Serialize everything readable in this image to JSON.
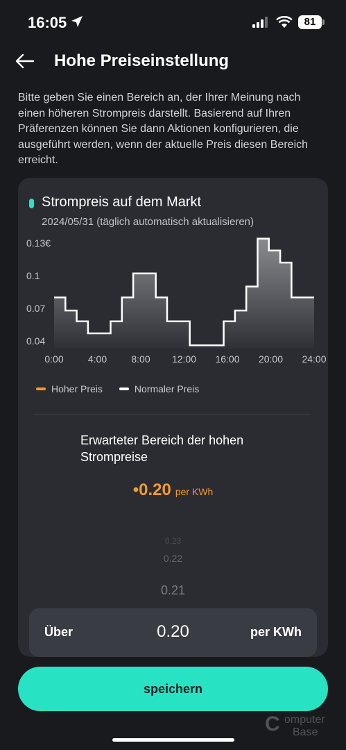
{
  "status": {
    "time": "16:05",
    "battery": "81"
  },
  "header": {
    "title": "Hohe Preiseinstellung"
  },
  "description": "Bitte geben Sie einen Bereich an, der Ihrer Meinung nach einen höheren Strompreis darstellt. Basierend auf Ihren Präferenzen können Sie dann Aktionen konfigurieren, die ausgeführt werden, wenn der aktuelle Preis diesen Bereich erreicht.",
  "card": {
    "title": "Strompreis auf dem Markt",
    "subtitle": "2024/05/31 (täglich automatisch aktualisieren)"
  },
  "chart_data": {
    "type": "line",
    "x_ticks": [
      "0:00",
      "4:00",
      "8:00",
      "12:00",
      "16:00",
      "20:00",
      "24:00"
    ],
    "y_ticks": [
      "0.13€",
      "0.1",
      "0.07",
      "0.04"
    ],
    "y_tick_values": [
      0.13,
      0.1,
      0.07,
      0.04
    ],
    "ylim": [
      0.033,
      0.135
    ],
    "x_range": [
      0,
      24
    ],
    "series": [
      {
        "name": "Normaler Preis",
        "values": [
          0.08,
          0.068,
          0.058,
          0.047,
          0.047,
          0.058,
          0.08,
          0.102,
          0.102,
          0.08,
          0.058,
          0.058,
          0.036,
          0.036,
          0.036,
          0.058,
          0.068,
          0.09,
          0.134,
          0.123,
          0.112,
          0.08,
          0.08
        ]
      }
    ],
    "legend": [
      {
        "label": "Hoher Preis",
        "color": "#f39a2d"
      },
      {
        "label": "Normaler Preis",
        "color": "#ffffff"
      }
    ]
  },
  "range": {
    "title": "Erwarteter Bereich der hohen Strompreise",
    "value": "•0.20",
    "unit": "per KWh"
  },
  "picker": {
    "above_faint": "0.23",
    "above_2": "0.22",
    "above_1": "0.21",
    "label": "Über",
    "selected": "0.20",
    "unit": "per KWh"
  },
  "save_label": "speichern",
  "watermark": {
    "c": "C",
    "line1": "omputer",
    "line2": "Base"
  },
  "colors": {
    "accent": "#27e3c4",
    "high": "#f39a2d",
    "background": "#191a1d",
    "card": "#2a2c32"
  }
}
